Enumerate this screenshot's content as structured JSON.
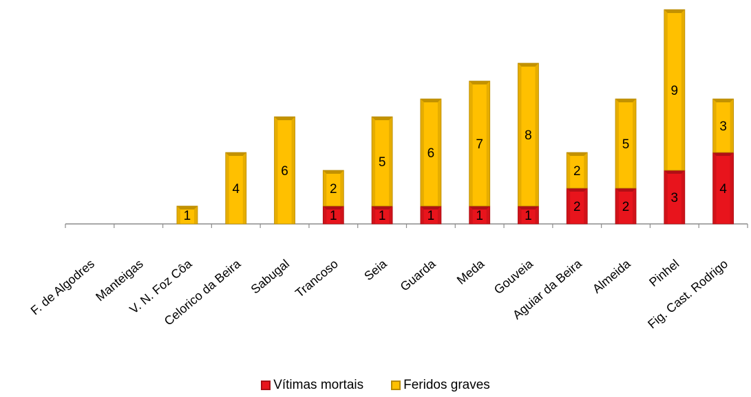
{
  "chart_data": {
    "type": "bar",
    "stacked": true,
    "categories": [
      "F. de Algodres",
      "Manteigas",
      "V. N. Foz Côa",
      "Celorico da Beira",
      "Sabugal",
      "Trancoso",
      "Seia",
      "Guarda",
      "Meda",
      "Gouveia",
      "Aguiar da Beira",
      "Almeida",
      "Pinhel",
      "Fig. Cast. Rodrigo"
    ],
    "series": [
      {
        "name": "Vítimas mortais",
        "color": "#e8141c",
        "values": [
          0,
          0,
          0,
          0,
          0,
          1,
          1,
          1,
          1,
          1,
          2,
          2,
          3,
          4
        ]
      },
      {
        "name": "Feridos graves",
        "color": "#ffc000",
        "values": [
          0,
          0,
          1,
          4,
          6,
          2,
          5,
          6,
          7,
          8,
          2,
          5,
          9,
          3
        ]
      }
    ],
    "ylim": [
      0,
      12
    ],
    "grid": false,
    "legend_position": "bottom"
  }
}
